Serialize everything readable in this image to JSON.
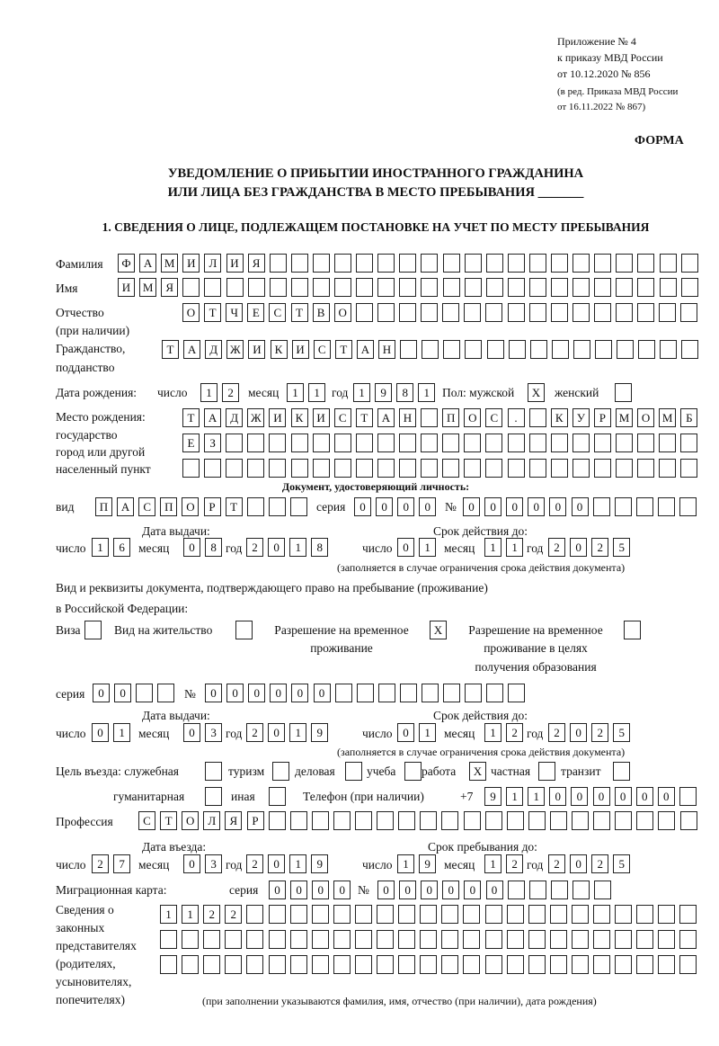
{
  "header": {
    "appendix_lines": [
      "Приложение № 4",
      "к приказу МВД России",
      "от 10.12.2020 № 856"
    ],
    "edition_lines": [
      "(в ред. Приказа МВД России",
      "от 16.11.2022 № 867)"
    ],
    "form_label": "ФОРМА",
    "title_line1": "УВЕДОМЛЕНИЕ О ПРИБЫТИИ ИНОСТРАННОГО ГРАЖДАНИНА",
    "title_line2": "ИЛИ ЛИЦА БЕЗ ГРАЖДАНСТВА В МЕСТО ПРЕБЫВАНИЯ _______",
    "section1": "1. СВЕДЕНИЯ О ЛИЦЕ, ПОДЛЕЖАЩЕМ ПОСТАНОВКЕ НА УЧЕТ ПО МЕСТУ ПРЕБЫВАНИЯ"
  },
  "labels": {
    "surname": "Фамилия",
    "name": "Имя",
    "patronymic1": "Отчество",
    "patronymic2": "(при наличии)",
    "citizenship1": "Гражданство,",
    "citizenship2": "подданство",
    "birth_date": "Дата рождения:",
    "day": "число",
    "month": "месяц",
    "year": "год",
    "sex_male": "Пол: мужской",
    "sex_female": "женский",
    "birthplace1": "Место рождения:",
    "birthplace2": "государство",
    "birthplace3": "город или другой",
    "birthplace4": "населенный пункт",
    "id_doc": "Документ, удостоверяющий личность:",
    "kind": "вид",
    "series": "серия",
    "number": "№",
    "issue_date": "Дата выдачи:",
    "valid_until": "Срок действия до:",
    "validity_note": "(заполняется в случае ограничения срока действия документа)",
    "stay_doc1": "Вид и реквизиты документа, подтверждающего право на пребывание (проживание)",
    "stay_doc2": "в Российской Федерации:",
    "visa": "Виза",
    "residence_permit": "Вид на жительство",
    "temp_residence1": "Разрешение на временное",
    "temp_residence2": "проживание",
    "temp_edu1": "Разрешение на временное",
    "temp_edu2": "проживание в целях",
    "temp_edu3": "получения образования",
    "purpose": "Цель въезда: служебная",
    "tourism": "туризм",
    "business": "деловая",
    "study": "учеба",
    "work": "работа",
    "private": "частная",
    "transit": "транзит",
    "humanitarian": "гуманитарная",
    "other": "иная",
    "phone": "Телефон (при наличии)",
    "phone_prefix": "+7",
    "profession": "Профессия",
    "entry_date": "Дата въезда:",
    "stay_until": "Срок пребывания до:",
    "migration_card": "Миграционная карта:",
    "reps1": "Сведения о",
    "reps2": "законных",
    "reps3": "представителях",
    "reps4": "(родителях,",
    "reps5": "усыновителях,",
    "reps6": "попечителях)",
    "reps_note": "(при заполнении указываются фамилия, имя, отчество (при наличии), дата рождения)"
  },
  "fields": {
    "surname": [
      "Ф",
      "А",
      "М",
      "И",
      "Л",
      "И",
      "Я",
      "",
      "",
      "",
      "",
      "",
      "",
      "",
      "",
      "",
      "",
      "",
      "",
      "",
      "",
      "",
      "",
      "",
      "",
      "",
      ""
    ],
    "name": [
      "И",
      "М",
      "Я",
      "",
      "",
      "",
      "",
      "",
      "",
      "",
      "",
      "",
      "",
      "",
      "",
      "",
      "",
      "",
      "",
      "",
      "",
      "",
      "",
      "",
      "",
      "",
      ""
    ],
    "patronymic": [
      "О",
      "Т",
      "Ч",
      "Е",
      "С",
      "Т",
      "В",
      "О",
      "",
      "",
      "",
      "",
      "",
      "",
      "",
      "",
      "",
      "",
      "",
      "",
      "",
      "",
      "",
      ""
    ],
    "citizenship": [
      "Т",
      "А",
      "Д",
      "Ж",
      "И",
      "К",
      "И",
      "С",
      "Т",
      "А",
      "Н",
      "",
      "",
      "",
      "",
      "",
      "",
      "",
      "",
      "",
      "",
      "",
      "",
      "",
      ""
    ],
    "birth_day": [
      "1",
      "2"
    ],
    "birth_month": [
      "1",
      "1"
    ],
    "birth_year": [
      "1",
      "9",
      "8",
      "1"
    ],
    "sex_male": [
      "X"
    ],
    "sex_female": [
      ""
    ],
    "birthplace_1": [
      "Т",
      "А",
      "Д",
      "Ж",
      "И",
      "К",
      "И",
      "С",
      "Т",
      "А",
      "Н",
      "",
      "П",
      "О",
      "С",
      ".",
      "",
      "К",
      "У",
      "Р",
      "М",
      "О",
      "М",
      "Б"
    ],
    "birthplace_2": [
      "Е",
      "З",
      "",
      "",
      "",
      "",
      "",
      "",
      "",
      "",
      "",
      "",
      "",
      "",
      "",
      "",
      "",
      "",
      "",
      "",
      "",
      "",
      "",
      ""
    ],
    "birthplace_3": [
      "",
      "",
      "",
      "",
      "",
      "",
      "",
      "",
      "",
      "",
      "",
      "",
      "",
      "",
      "",
      "",
      "",
      "",
      "",
      "",
      "",
      "",
      "",
      ""
    ],
    "id_kind": [
      "П",
      "А",
      "С",
      "П",
      "О",
      "Р",
      "Т",
      "",
      "",
      ""
    ],
    "id_series": [
      "0",
      "0",
      "0",
      "0"
    ],
    "id_number": [
      "0",
      "0",
      "0",
      "0",
      "0",
      "0",
      "",
      "",
      "",
      "",
      ""
    ],
    "id_issue_day": [
      "1",
      "6"
    ],
    "id_issue_month": [
      "0",
      "8"
    ],
    "id_issue_year": [
      "2",
      "0",
      "1",
      "8"
    ],
    "id_valid_day": [
      "0",
      "1"
    ],
    "id_valid_month": [
      "1",
      "1"
    ],
    "id_valid_year": [
      "2",
      "0",
      "2",
      "5"
    ],
    "visa": [
      ""
    ],
    "residence_permit": [
      ""
    ],
    "temp_residence": [
      "X"
    ],
    "temp_edu": [
      ""
    ],
    "stay_series": [
      "0",
      "0",
      "",
      ""
    ],
    "stay_number": [
      "0",
      "0",
      "0",
      "0",
      "0",
      "0",
      "",
      "",
      "",
      "",
      "",
      "",
      "",
      "",
      ""
    ],
    "stay_issue_day": [
      "0",
      "1"
    ],
    "stay_issue_month": [
      "0",
      "3"
    ],
    "stay_issue_year": [
      "2",
      "0",
      "1",
      "9"
    ],
    "stay_valid_day": [
      "0",
      "1"
    ],
    "stay_valid_month": [
      "1",
      "2"
    ],
    "stay_valid_year": [
      "2",
      "0",
      "2",
      "5"
    ],
    "purpose_service": [
      ""
    ],
    "purpose_tourism": [
      ""
    ],
    "purpose_business": [
      ""
    ],
    "purpose_study": [
      ""
    ],
    "purpose_work": [
      "X"
    ],
    "purpose_private": [
      ""
    ],
    "purpose_transit": [
      ""
    ],
    "purpose_humanitarian": [
      ""
    ],
    "purpose_other": [
      ""
    ],
    "phone": [
      "9",
      "1",
      "1",
      "0",
      "0",
      "0",
      "0",
      "0",
      "0",
      ""
    ],
    "profession": [
      "С",
      "Т",
      "О",
      "Л",
      "Я",
      "Р",
      "",
      "",
      "",
      "",
      "",
      "",
      "",
      "",
      "",
      "",
      "",
      "",
      "",
      "",
      "",
      "",
      "",
      "",
      "",
      ""
    ],
    "entry_day": [
      "2",
      "7"
    ],
    "entry_month": [
      "0",
      "3"
    ],
    "entry_year": [
      "2",
      "0",
      "1",
      "9"
    ],
    "stay_until_day": [
      "1",
      "9"
    ],
    "stay_until_month": [
      "1",
      "2"
    ],
    "stay_until_year": [
      "2",
      "0",
      "2",
      "5"
    ],
    "mc_series": [
      "0",
      "0",
      "0",
      "0"
    ],
    "mc_number": [
      "0",
      "0",
      "0",
      "0",
      "0",
      "0",
      "",
      "",
      "",
      "",
      ""
    ],
    "reps_1": [
      "1",
      "1",
      "2",
      "2",
      "",
      "",
      "",
      "",
      "",
      "",
      "",
      "",
      "",
      "",
      "",
      "",
      "",
      "",
      "",
      "",
      "",
      "",
      "",
      "",
      ""
    ],
    "reps_2": [
      "",
      "",
      "",
      "",
      "",
      "",
      "",
      "",
      "",
      "",
      "",
      "",
      "",
      "",
      "",
      "",
      "",
      "",
      "",
      "",
      "",
      "",
      "",
      "",
      ""
    ],
    "reps_3": [
      "",
      "",
      "",
      "",
      "",
      "",
      "",
      "",
      "",
      "",
      "",
      "",
      "",
      "",
      "",
      "",
      "",
      "",
      "",
      "",
      "",
      "",
      "",
      "",
      ""
    ]
  }
}
